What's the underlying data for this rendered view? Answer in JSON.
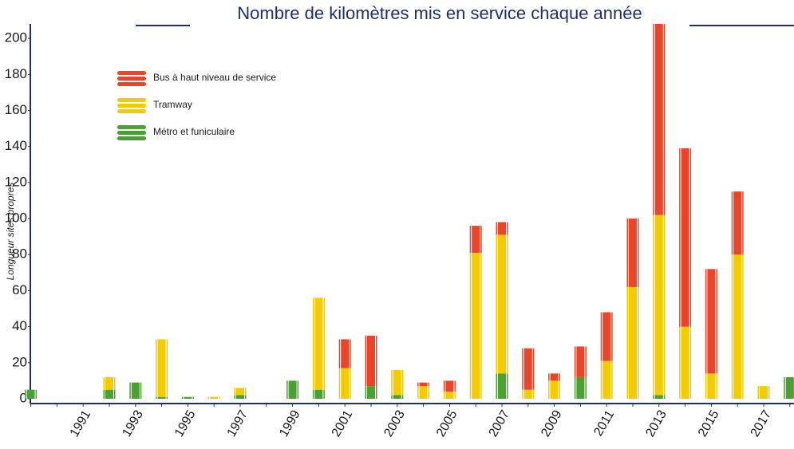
{
  "chart_data": {
    "type": "stacked_bar",
    "title": "Nombre de kilomètres mis en service chaque année",
    "y_label": "Longueur sites propres",
    "categories": [
      null,
      null,
      "1991",
      null,
      "1993",
      null,
      "1995",
      null,
      "1997",
      null,
      "1999",
      null,
      "2001",
      null,
      "2003",
      null,
      "2005",
      null,
      "2007",
      null,
      "2009",
      null,
      "2011",
      null,
      "2013",
      null,
      "2015",
      null,
      "2017",
      null
    ],
    "series": [
      {
        "name": "Métro et funiculaire",
        "color": "#4aa032",
        "values": [
          5,
          0,
          0,
          5,
          9,
          1,
          1,
          0,
          2,
          0,
          10,
          5,
          0,
          7,
          2,
          0,
          0,
          0,
          14,
          0,
          0,
          12,
          0,
          0,
          2,
          0,
          0,
          0,
          0,
          12
        ]
      },
      {
        "name": "Tramway",
        "color": "#f2cb00",
        "values": [
          0,
          0,
          0,
          7,
          0,
          32,
          0,
          1,
          4,
          0,
          0,
          51,
          17,
          0,
          14,
          7,
          4,
          81,
          77,
          5,
          10,
          0,
          21,
          62,
          100,
          40,
          14,
          80,
          7,
          0
        ]
      },
      {
        "name": "Bus à haut niveau de service",
        "color": "#e8452a",
        "values": [
          0,
          0,
          0,
          0,
          0,
          0,
          0,
          0,
          0,
          0,
          0,
          0,
          16,
          28,
          0,
          2,
          6,
          15,
          7,
          23,
          4,
          17,
          27,
          38,
          106,
          99,
          58,
          35,
          0,
          0
        ]
      }
    ],
    "ylim": [
      0,
      208
    ],
    "yticks": [
      0,
      20,
      40,
      60,
      80,
      100,
      120,
      140,
      160,
      180,
      200
    ]
  }
}
